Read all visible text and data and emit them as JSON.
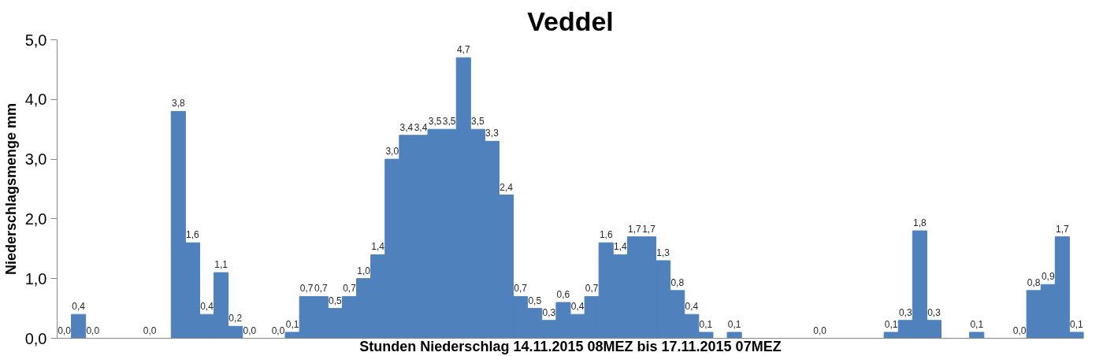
{
  "chart_data": {
    "type": "bar",
    "title": "Veddel",
    "xlabel": "Stunden Niederschlag 14.11.2015 08MEZ bis 17.11.2015 07MEZ",
    "ylabel": "Niederschlagsmenge mm",
    "categories": [
      null,
      null,
      null,
      null,
      null,
      null,
      null,
      null,
      null,
      null,
      null,
      null,
      null,
      null,
      null,
      null,
      null,
      null,
      null,
      null,
      null,
      null,
      null,
      null,
      null,
      null,
      null,
      null,
      null,
      null,
      null,
      null,
      null,
      null,
      null,
      null,
      null,
      null,
      null,
      null,
      null,
      null,
      null,
      null,
      null,
      null,
      null,
      null,
      null,
      null,
      null,
      null,
      null,
      null,
      null,
      null,
      null,
      null,
      null,
      null,
      null,
      null,
      null,
      null,
      null,
      null,
      null,
      null,
      null,
      null,
      null,
      null
    ],
    "values": [
      0.0,
      0.4,
      0.0,
      null,
      null,
      null,
      0.0,
      null,
      3.8,
      1.6,
      0.4,
      1.1,
      0.2,
      0.0,
      null,
      0.0,
      0.1,
      0.7,
      0.7,
      0.5,
      0.7,
      1.0,
      1.4,
      3.0,
      3.4,
      3.4,
      3.5,
      3.5,
      4.7,
      3.5,
      3.3,
      2.4,
      0.7,
      0.5,
      0.3,
      0.6,
      0.4,
      0.7,
      1.6,
      1.4,
      1.7,
      1.7,
      1.3,
      0.8,
      0.4,
      0.1,
      null,
      0.1,
      null,
      null,
      null,
      null,
      null,
      0.0,
      null,
      null,
      null,
      null,
      0.1,
      0.3,
      1.8,
      0.3,
      null,
      null,
      0.1,
      null,
      null,
      0.0,
      0.8,
      0.9,
      1.7,
      0.1
    ],
    "value_labels": [
      "0,0",
      "0,4",
      "0,0",
      null,
      null,
      null,
      "0,0",
      null,
      "3,8",
      "1,6",
      "0,4",
      "1,1",
      "0,2",
      "0,0",
      null,
      "0,0",
      "0,1",
      "0,7",
      "0,7",
      "0,5",
      "0,7",
      "1,0",
      "1,4",
      "3,0",
      "3,4",
      "3,4",
      "3,5",
      "3,5",
      "4,7",
      "3,5",
      "3,3",
      "2,4",
      "0,7",
      "0,5",
      "0,3",
      "0,6",
      "0,4",
      "0,7",
      "1,6",
      "1,4",
      "1,7",
      "1,7",
      "1,3",
      "0,8",
      "0,4",
      "0,1",
      null,
      "0,1",
      null,
      null,
      null,
      null,
      null,
      "0,0",
      null,
      null,
      null,
      null,
      "0,1",
      "0,3",
      "1,8",
      "0,3",
      null,
      null,
      "0,1",
      null,
      null,
      "0,0",
      "0,8",
      "0,9",
      "1,7",
      "0,1"
    ],
    "color": "#4f81bd",
    "ylim": [
      0,
      5
    ],
    "yticks": [
      {
        "value": 0,
        "label": "0,0"
      },
      {
        "value": 1,
        "label": "1,0"
      },
      {
        "value": 2,
        "label": "2,0"
      },
      {
        "value": 3,
        "label": "3,0"
      },
      {
        "value": 4,
        "label": "4,0"
      },
      {
        "value": 5,
        "label": "5,0"
      }
    ],
    "grid": false
  }
}
